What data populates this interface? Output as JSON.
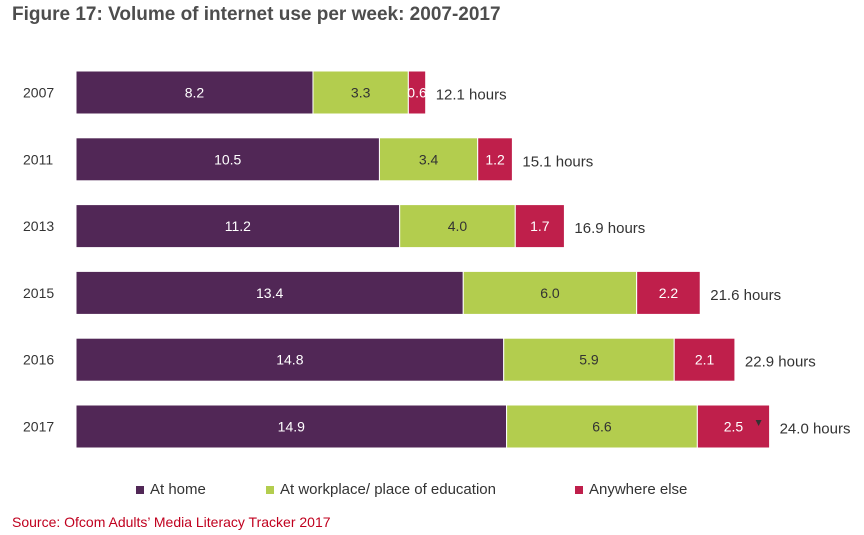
{
  "title": "Figure 17: Volume of internet use per week: 2007-2017",
  "source": "Source: Ofcom Adults’ Media Literacy Tracker 2017",
  "chart_data": {
    "type": "bar",
    "orientation": "horizontal",
    "stacked": true,
    "categories": [
      "2007",
      "2011",
      "2013",
      "2015",
      "2016",
      "2017"
    ],
    "series": [
      {
        "name": "At home",
        "color": "#512756",
        "values": [
          8.2,
          10.5,
          11.2,
          13.4,
          14.8,
          14.9
        ],
        "labels": [
          "8.2",
          "10.5",
          "11.2",
          "13.4",
          "14.8",
          "14.9"
        ]
      },
      {
        "name": "At workplace/ place of education",
        "color": "#b3cd4e",
        "values": [
          3.3,
          3.4,
          4.0,
          6.0,
          5.9,
          6.6
        ],
        "labels": [
          "3.3",
          "3.4",
          "4.0",
          "6.0",
          "5.9",
          "6.6"
        ]
      },
      {
        "name": "Anywhere else",
        "color": "#bf1f4b",
        "values": [
          0.6,
          1.2,
          1.7,
          2.2,
          2.1,
          2.5
        ],
        "labels": [
          "0.6",
          "1.2",
          "1.7",
          "2.2",
          "2.1",
          "2.5"
        ]
      }
    ],
    "totals": [
      "12.1 hours",
      "15.1 hours",
      "16.9 hours",
      "21.6 hours",
      "22.9 hours",
      "24.0 hours"
    ],
    "significance_marker_row": "2017",
    "grid": false,
    "legend_position": "bottom"
  }
}
